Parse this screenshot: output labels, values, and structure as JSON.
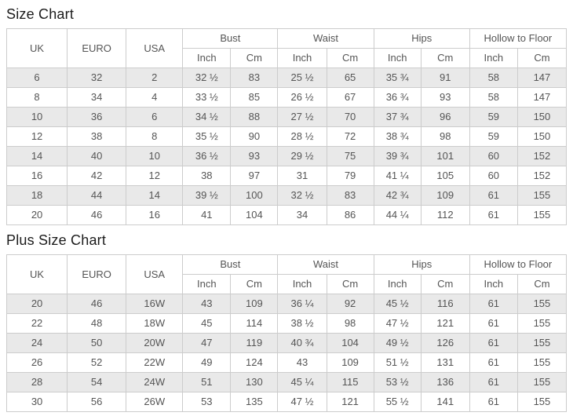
{
  "colors": {
    "border": "#cccccc",
    "row_stripe": "#e9e9e9",
    "text": "#555555",
    "title_text": "#1c1c1c"
  },
  "chart_data": [
    {
      "type": "table",
      "title": "Size Chart",
      "column_groups": [
        {
          "label": "UK",
          "cols": 1
        },
        {
          "label": "EURO",
          "cols": 1
        },
        {
          "label": "USA",
          "cols": 1
        },
        {
          "label": "Bust",
          "cols": 2
        },
        {
          "label": "Waist",
          "cols": 2
        },
        {
          "label": "Hips",
          "cols": 2
        },
        {
          "label": "Hollow to Floor",
          "cols": 2
        }
      ],
      "subheader_labels": [
        "Inch",
        "Cm"
      ],
      "columns": [
        "UK",
        "EURO",
        "USA",
        "Bust Inch",
        "Bust Cm",
        "Waist Inch",
        "Waist Cm",
        "Hips Inch",
        "Hips Cm",
        "Hollow to Floor Inch",
        "Hollow to Floor Cm"
      ],
      "rows": [
        [
          "6",
          "32",
          "2",
          "32 ½",
          "83",
          "25 ½",
          "65",
          "35 ¾",
          "91",
          "58",
          "147"
        ],
        [
          "8",
          "34",
          "4",
          "33 ½",
          "85",
          "26 ½",
          "67",
          "36 ¾",
          "93",
          "58",
          "147"
        ],
        [
          "10",
          "36",
          "6",
          "34 ½",
          "88",
          "27 ½",
          "70",
          "37 ¾",
          "96",
          "59",
          "150"
        ],
        [
          "12",
          "38",
          "8",
          "35 ½",
          "90",
          "28 ½",
          "72",
          "38 ¾",
          "98",
          "59",
          "150"
        ],
        [
          "14",
          "40",
          "10",
          "36 ½",
          "93",
          "29 ½",
          "75",
          "39 ¾",
          "101",
          "60",
          "152"
        ],
        [
          "16",
          "42",
          "12",
          "38",
          "97",
          "31",
          "79",
          "41 ¼",
          "105",
          "60",
          "152"
        ],
        [
          "18",
          "44",
          "14",
          "39 ½",
          "100",
          "32 ½",
          "83",
          "42 ¾",
          "109",
          "61",
          "155"
        ],
        [
          "20",
          "46",
          "16",
          "41",
          "104",
          "34",
          "86",
          "44 ¼",
          "112",
          "61",
          "155"
        ]
      ]
    },
    {
      "type": "table",
      "title": "Plus Size Chart",
      "column_groups": [
        {
          "label": "UK",
          "cols": 1
        },
        {
          "label": "EURO",
          "cols": 1
        },
        {
          "label": "USA",
          "cols": 1
        },
        {
          "label": "Bust",
          "cols": 2
        },
        {
          "label": "Waist",
          "cols": 2
        },
        {
          "label": "Hips",
          "cols": 2
        },
        {
          "label": "Hollow to Floor",
          "cols": 2
        }
      ],
      "subheader_labels": [
        "Inch",
        "Cm"
      ],
      "columns": [
        "UK",
        "EURO",
        "USA",
        "Bust Inch",
        "Bust Cm",
        "Waist Inch",
        "Waist Cm",
        "Hips Inch",
        "Hips Cm",
        "Hollow to Floor Inch",
        "Hollow to Floor Cm"
      ],
      "rows": [
        [
          "20",
          "46",
          "16W",
          "43",
          "109",
          "36 ¼",
          "92",
          "45 ½",
          "116",
          "61",
          "155"
        ],
        [
          "22",
          "48",
          "18W",
          "45",
          "114",
          "38 ½",
          "98",
          "47 ½",
          "121",
          "61",
          "155"
        ],
        [
          "24",
          "50",
          "20W",
          "47",
          "119",
          "40 ¾",
          "104",
          "49 ½",
          "126",
          "61",
          "155"
        ],
        [
          "26",
          "52",
          "22W",
          "49",
          "124",
          "43",
          "109",
          "51 ½",
          "131",
          "61",
          "155"
        ],
        [
          "28",
          "54",
          "24W",
          "51",
          "130",
          "45 ¼",
          "115",
          "53 ½",
          "136",
          "61",
          "155"
        ],
        [
          "30",
          "56",
          "26W",
          "53",
          "135",
          "47 ½",
          "121",
          "55 ½",
          "141",
          "61",
          "155"
        ]
      ]
    }
  ]
}
